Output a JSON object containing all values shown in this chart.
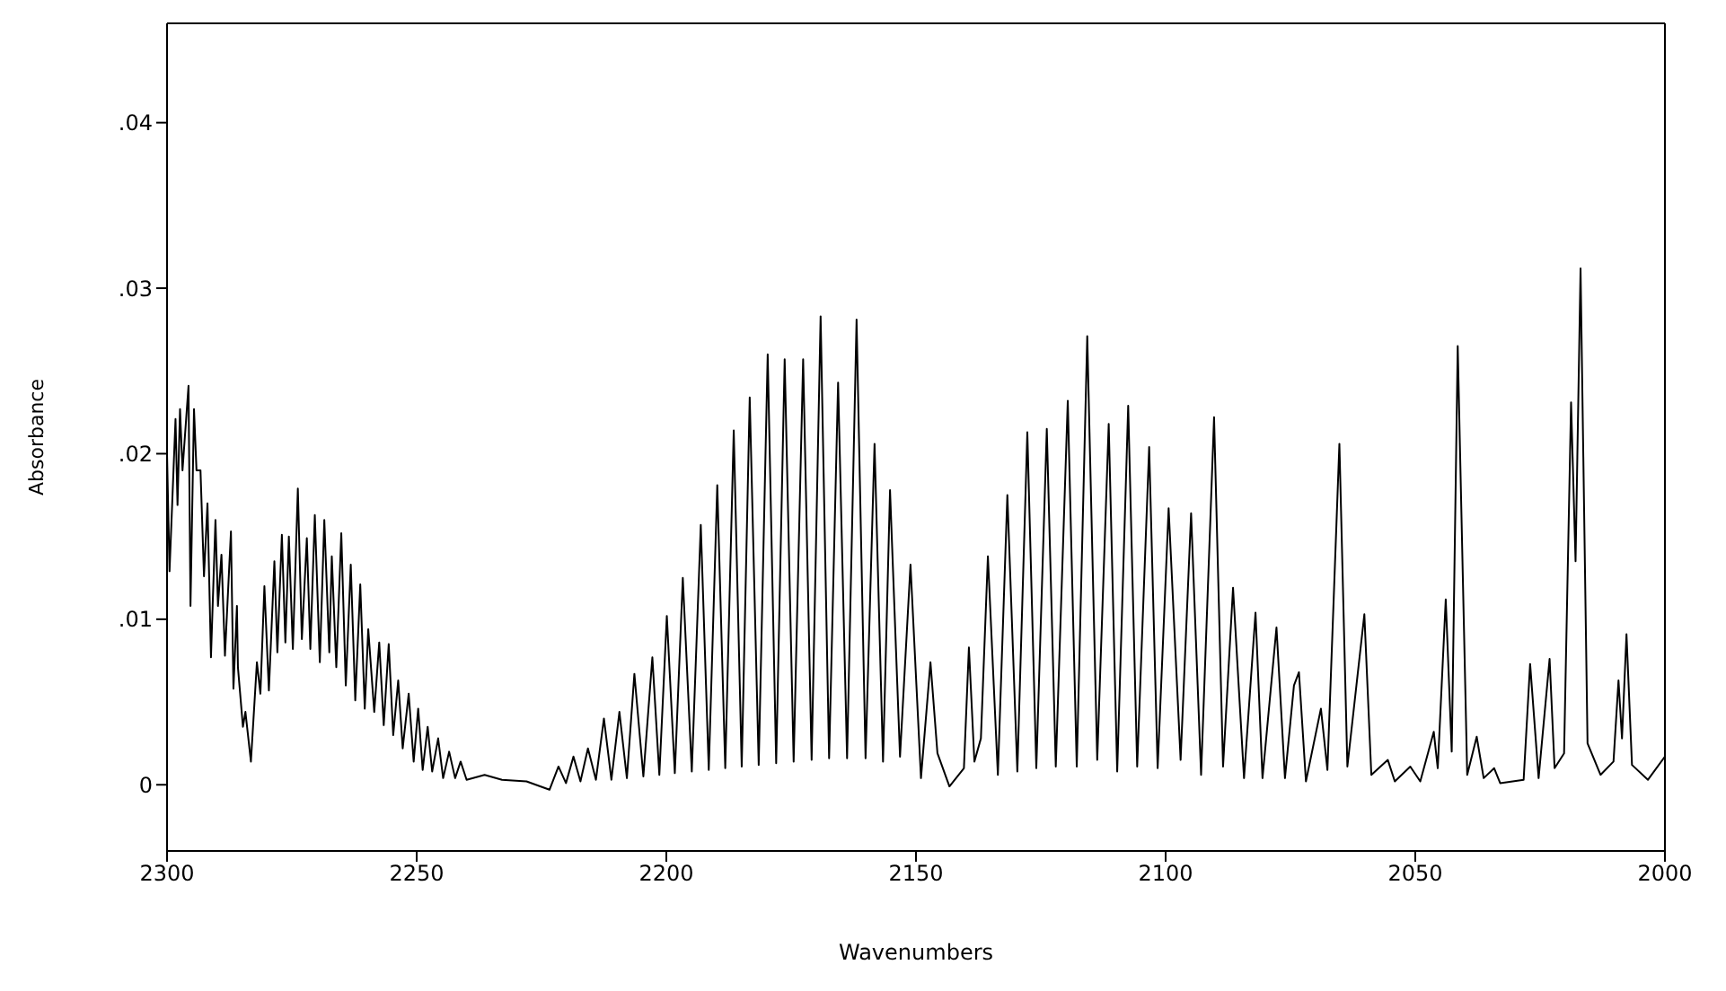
{
  "chart_data": {
    "type": "line",
    "xlabel": "Wavenumbers",
    "ylabel": "Absorbance",
    "xlim": [
      2300,
      2000
    ],
    "xticks": [
      2300,
      2250,
      2200,
      2150,
      2100,
      2050,
      2000
    ],
    "ylim": [
      -0.004,
      0.046
    ],
    "yticks": [
      {
        "value": 0,
        "label": "0"
      },
      {
        "value": 0.01,
        "label": ".01"
      },
      {
        "value": 0.02,
        "label": ".02"
      },
      {
        "value": 0.03,
        "label": ".03"
      },
      {
        "value": 0.04,
        "label": ".04"
      }
    ],
    "marker": "none",
    "line_style": "solid",
    "series": [
      {
        "color": "#000000",
        "x": [
          2300,
          2299.5,
          2298.3,
          2297.9,
          2297.4,
          2296.9,
          2295.7,
          2295.3,
          2294.6,
          2294.1,
          2293.3,
          2292.6,
          2291.9,
          2291.2,
          2290.3,
          2289.8,
          2289.1,
          2288.4,
          2287.2,
          2286.7,
          2286.0,
          2285.8,
          2284.8,
          2284.3,
          2283.2,
          2282.0,
          2281.3,
          2280.5,
          2279.6,
          2278.5,
          2277.9,
          2277.0,
          2276.3,
          2275.6,
          2274.8,
          2273.8,
          2273.0,
          2272.0,
          2271.3,
          2270.4,
          2269.4,
          2268.5,
          2267.5,
          2267.0,
          2266.1,
          2265.1,
          2264.2,
          2263.2,
          2262.3,
          2261.3,
          2260.4,
          2259.7,
          2258.5,
          2257.5,
          2256.6,
          2255.6,
          2254.7,
          2253.7,
          2252.8,
          2251.6,
          2250.6,
          2249.7,
          2248.8,
          2247.8,
          2246.9,
          2245.7,
          2244.7,
          2243.5,
          2242.3,
          2241.2,
          2240,
          2236.4,
          2232.9,
          2228,
          2223.4,
          2221.6,
          2220.1,
          2218.6,
          2217.2,
          2215.7,
          2214.1,
          2212.5,
          2211.0,
          2209.4,
          2207.9,
          2206.4,
          2204.6,
          2202.8,
          2201.4,
          2199.9,
          2198.3,
          2196.7,
          2194.9,
          2193.1,
          2191.5,
          2189.8,
          2188.2,
          2186.5,
          2184.9,
          2183.3,
          2181.5,
          2179.7,
          2178.0,
          2176.3,
          2174.5,
          2172.6,
          2170.9,
          2169.1,
          2167.4,
          2165.6,
          2163.8,
          2161.9,
          2160.1,
          2158.3,
          2156.6,
          2155.2,
          2153.2,
          2151.1,
          2149.0,
          2147.1,
          2145.7,
          2143.3,
          2140.4,
          2139.4,
          2138.3,
          2137.0,
          2135.6,
          2133.6,
          2131.7,
          2129.7,
          2127.7,
          2125.9,
          2123.8,
          2122.0,
          2119.6,
          2117.8,
          2115.7,
          2113.7,
          2111.4,
          2109.7,
          2107.5,
          2105.7,
          2103.3,
          2101.6,
          2099.4,
          2097.0,
          2094.9,
          2092.9,
          2090.3,
          2088.5,
          2086.5,
          2084.3,
          2082.0,
          2080.6,
          2077.8,
          2076.1,
          2074.3,
          2073.3,
          2071.9,
          2068.9,
          2067.6,
          2065.2,
          2063.6,
          2060.2,
          2058.8,
          2055.5,
          2054.1,
          2051.0,
          2049.0,
          2046.3,
          2045.5,
          2043.9,
          2042.7,
          2041.5,
          2039.6,
          2037.7,
          2036.3,
          2034.2,
          2033.0,
          2028.3,
          2027.0,
          2025.3,
          2023.1,
          2022.1,
          2020.2,
          2018.8,
          2017.9,
          2016.9,
          2015.5,
          2012.9,
          2010.3,
          2009.3,
          2008.6,
          2007.7,
          2006.6,
          2003.4,
          2000
        ],
        "values": [
          0.02,
          0.0129,
          0.0221,
          0.0169,
          0.0227,
          0.019,
          0.0241,
          0.0108,
          0.0227,
          0.019,
          0.019,
          0.0126,
          0.017,
          0.0077,
          0.016,
          0.0108,
          0.0139,
          0.0078,
          0.0153,
          0.0058,
          0.0108,
          0.0071,
          0.0035,
          0.0044,
          0.0014,
          0.0074,
          0.0055,
          0.012,
          0.0057,
          0.0135,
          0.008,
          0.0151,
          0.0086,
          0.015,
          0.0082,
          0.0179,
          0.0088,
          0.0149,
          0.0082,
          0.0163,
          0.0074,
          0.016,
          0.008,
          0.0138,
          0.0071,
          0.0152,
          0.006,
          0.0133,
          0.0051,
          0.0121,
          0.0046,
          0.0094,
          0.0044,
          0.0086,
          0.0036,
          0.0085,
          0.003,
          0.0063,
          0.0022,
          0.0055,
          0.0014,
          0.0046,
          0.0009,
          0.0035,
          0.0008,
          0.0028,
          0.0004,
          0.002,
          0.0004,
          0.0014,
          0.0003,
          0.0006,
          0.0003,
          0.0002,
          -0.0003,
          0.0011,
          0.0001,
          0.0017,
          0.0002,
          0.0022,
          0.0003,
          0.004,
          0.0003,
          0.0044,
          0.0004,
          0.0067,
          0.0005,
          0.0077,
          0.0006,
          0.0102,
          0.0007,
          0.0125,
          0.0008,
          0.0157,
          0.0009,
          0.0181,
          0.001,
          0.0214,
          0.0011,
          0.0234,
          0.0012,
          0.026,
          0.0013,
          0.0257,
          0.0014,
          0.0257,
          0.0015,
          0.0283,
          0.0016,
          0.0243,
          0.0016,
          0.0281,
          0.0016,
          0.0206,
          0.0014,
          0.0178,
          0.0017,
          0.0133,
          0.0004,
          0.0074,
          0.0019,
          -0.0001,
          0.001,
          0.0083,
          0.0014,
          0.0028,
          0.0138,
          0.0006,
          0.0175,
          0.0008,
          0.0213,
          0.001,
          0.0215,
          0.0011,
          0.0232,
          0.0011,
          0.0271,
          0.0015,
          0.0218,
          0.0008,
          0.0229,
          0.0011,
          0.0204,
          0.001,
          0.0167,
          0.0015,
          0.0164,
          0.0006,
          0.0222,
          0.0011,
          0.0119,
          0.0004,
          0.0104,
          0.0004,
          0.0095,
          0.0004,
          0.006,
          0.0068,
          0.0002,
          0.0046,
          0.0009,
          0.0206,
          0.0011,
          0.0103,
          0.0006,
          0.0015,
          0.0002,
          0.0011,
          0.0002,
          0.0032,
          0.001,
          0.0112,
          0.002,
          0.0265,
          0.0006,
          0.0029,
          0.0004,
          0.001,
          0.0001,
          0.0003,
          0.0073,
          0.0004,
          0.0076,
          0.001,
          0.0019,
          0.0231,
          0.0135,
          0.0312,
          0.0025,
          0.0006,
          0.0014,
          0.0063,
          0.0028,
          0.0091,
          0.0012,
          0.0003,
          0.0017
        ]
      }
    ]
  }
}
